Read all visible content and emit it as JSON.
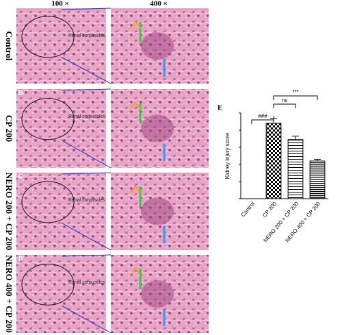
{
  "figure": {
    "column_headers": [
      "100 ×",
      "400 ×"
    ],
    "rows": [
      {
        "label": "Control",
        "annotation": "Renal corpuscles"
      },
      {
        "label": "CP 200",
        "letter": "B",
        "annotation": "Renal corpuscles"
      },
      {
        "label": "NERO 200 + CP 200",
        "letter": "C",
        "annotation": "Renal corpuscles"
      },
      {
        "label": "NERO 400 + CP 200",
        "letter": "D",
        "annotation": "Renal corpuscles"
      }
    ]
  },
  "chart_data": {
    "type": "bar",
    "panel_label": "E",
    "y_label": "Kidney injury score",
    "categories": [
      "Control",
      "CP 200",
      "NERO 200 + CP 200",
      "NERO 400 + CP 200"
    ],
    "values": [
      0,
      4.4,
      3.45,
      2.2
    ],
    "errors": [
      0,
      0.3,
      0.2,
      0.1
    ],
    "patterns": [
      "checker",
      "checker",
      "hlines",
      "hlines-dense"
    ],
    "color": "#000000",
    "ylim": [
      0,
      5
    ],
    "yticks": [
      0,
      1,
      2,
      3,
      4,
      5
    ],
    "show_ytick_labels": false,
    "annotations": [
      {
        "text": "###",
        "from": 0,
        "to": 1
      },
      {
        "text": "ns",
        "from": 1,
        "to": 2
      },
      {
        "text": "***",
        "from": 1,
        "to": 3
      }
    ]
  }
}
